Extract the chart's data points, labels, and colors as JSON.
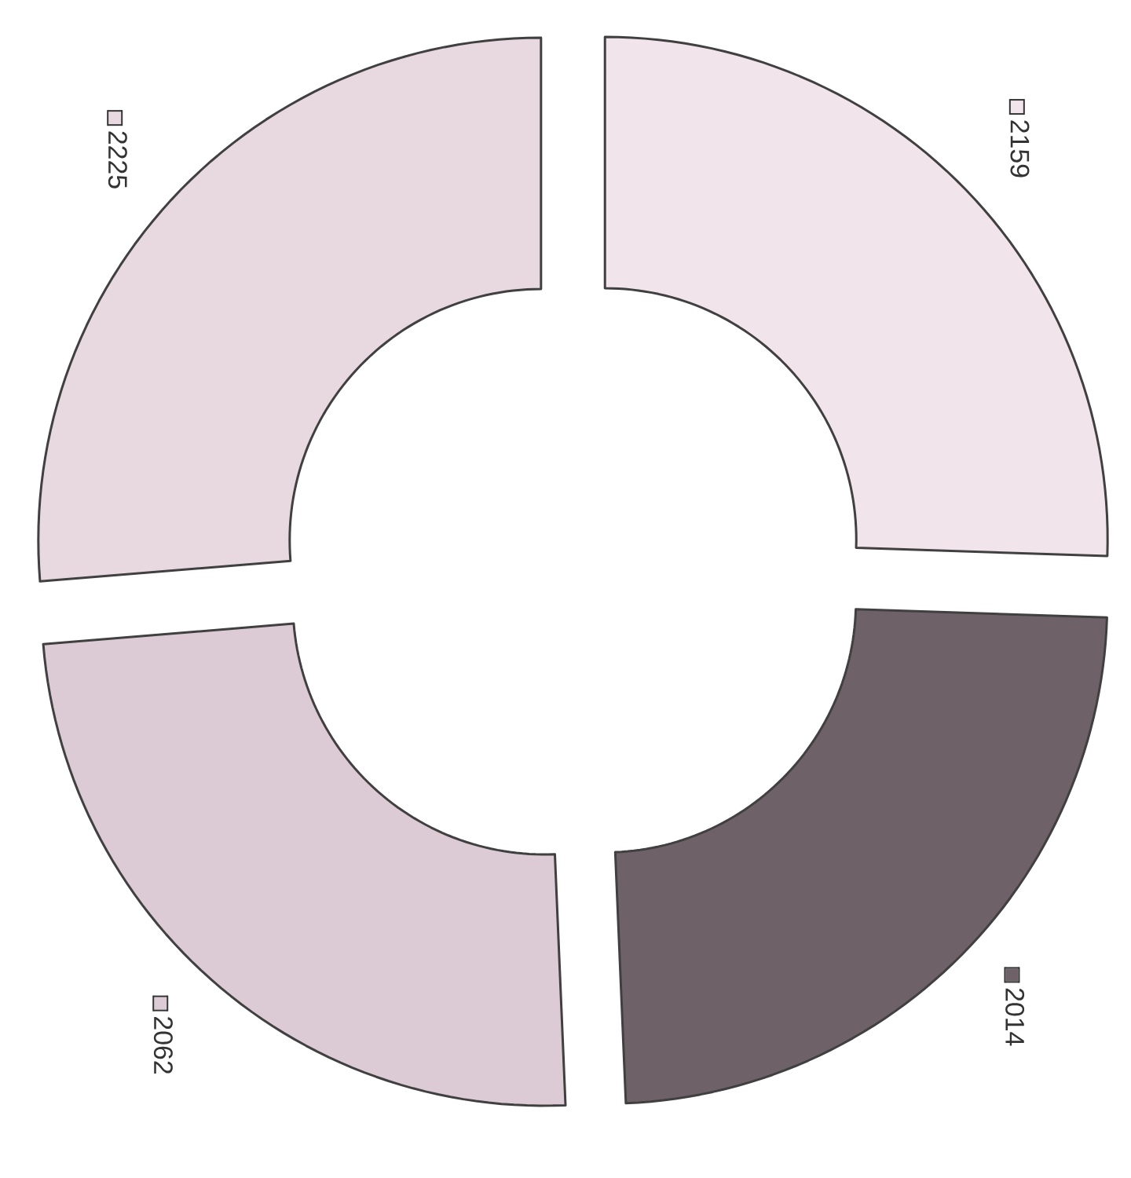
{
  "chart_data": {
    "type": "donut",
    "categories": [
      null,
      null,
      null,
      null
    ],
    "values": [
      2159,
      2014,
      2062,
      2225
    ],
    "data_labels": true,
    "colors": [
      "#f1e4ea",
      "#6f6168",
      "#dccbd4",
      "#e8d9e0"
    ]
  }
}
